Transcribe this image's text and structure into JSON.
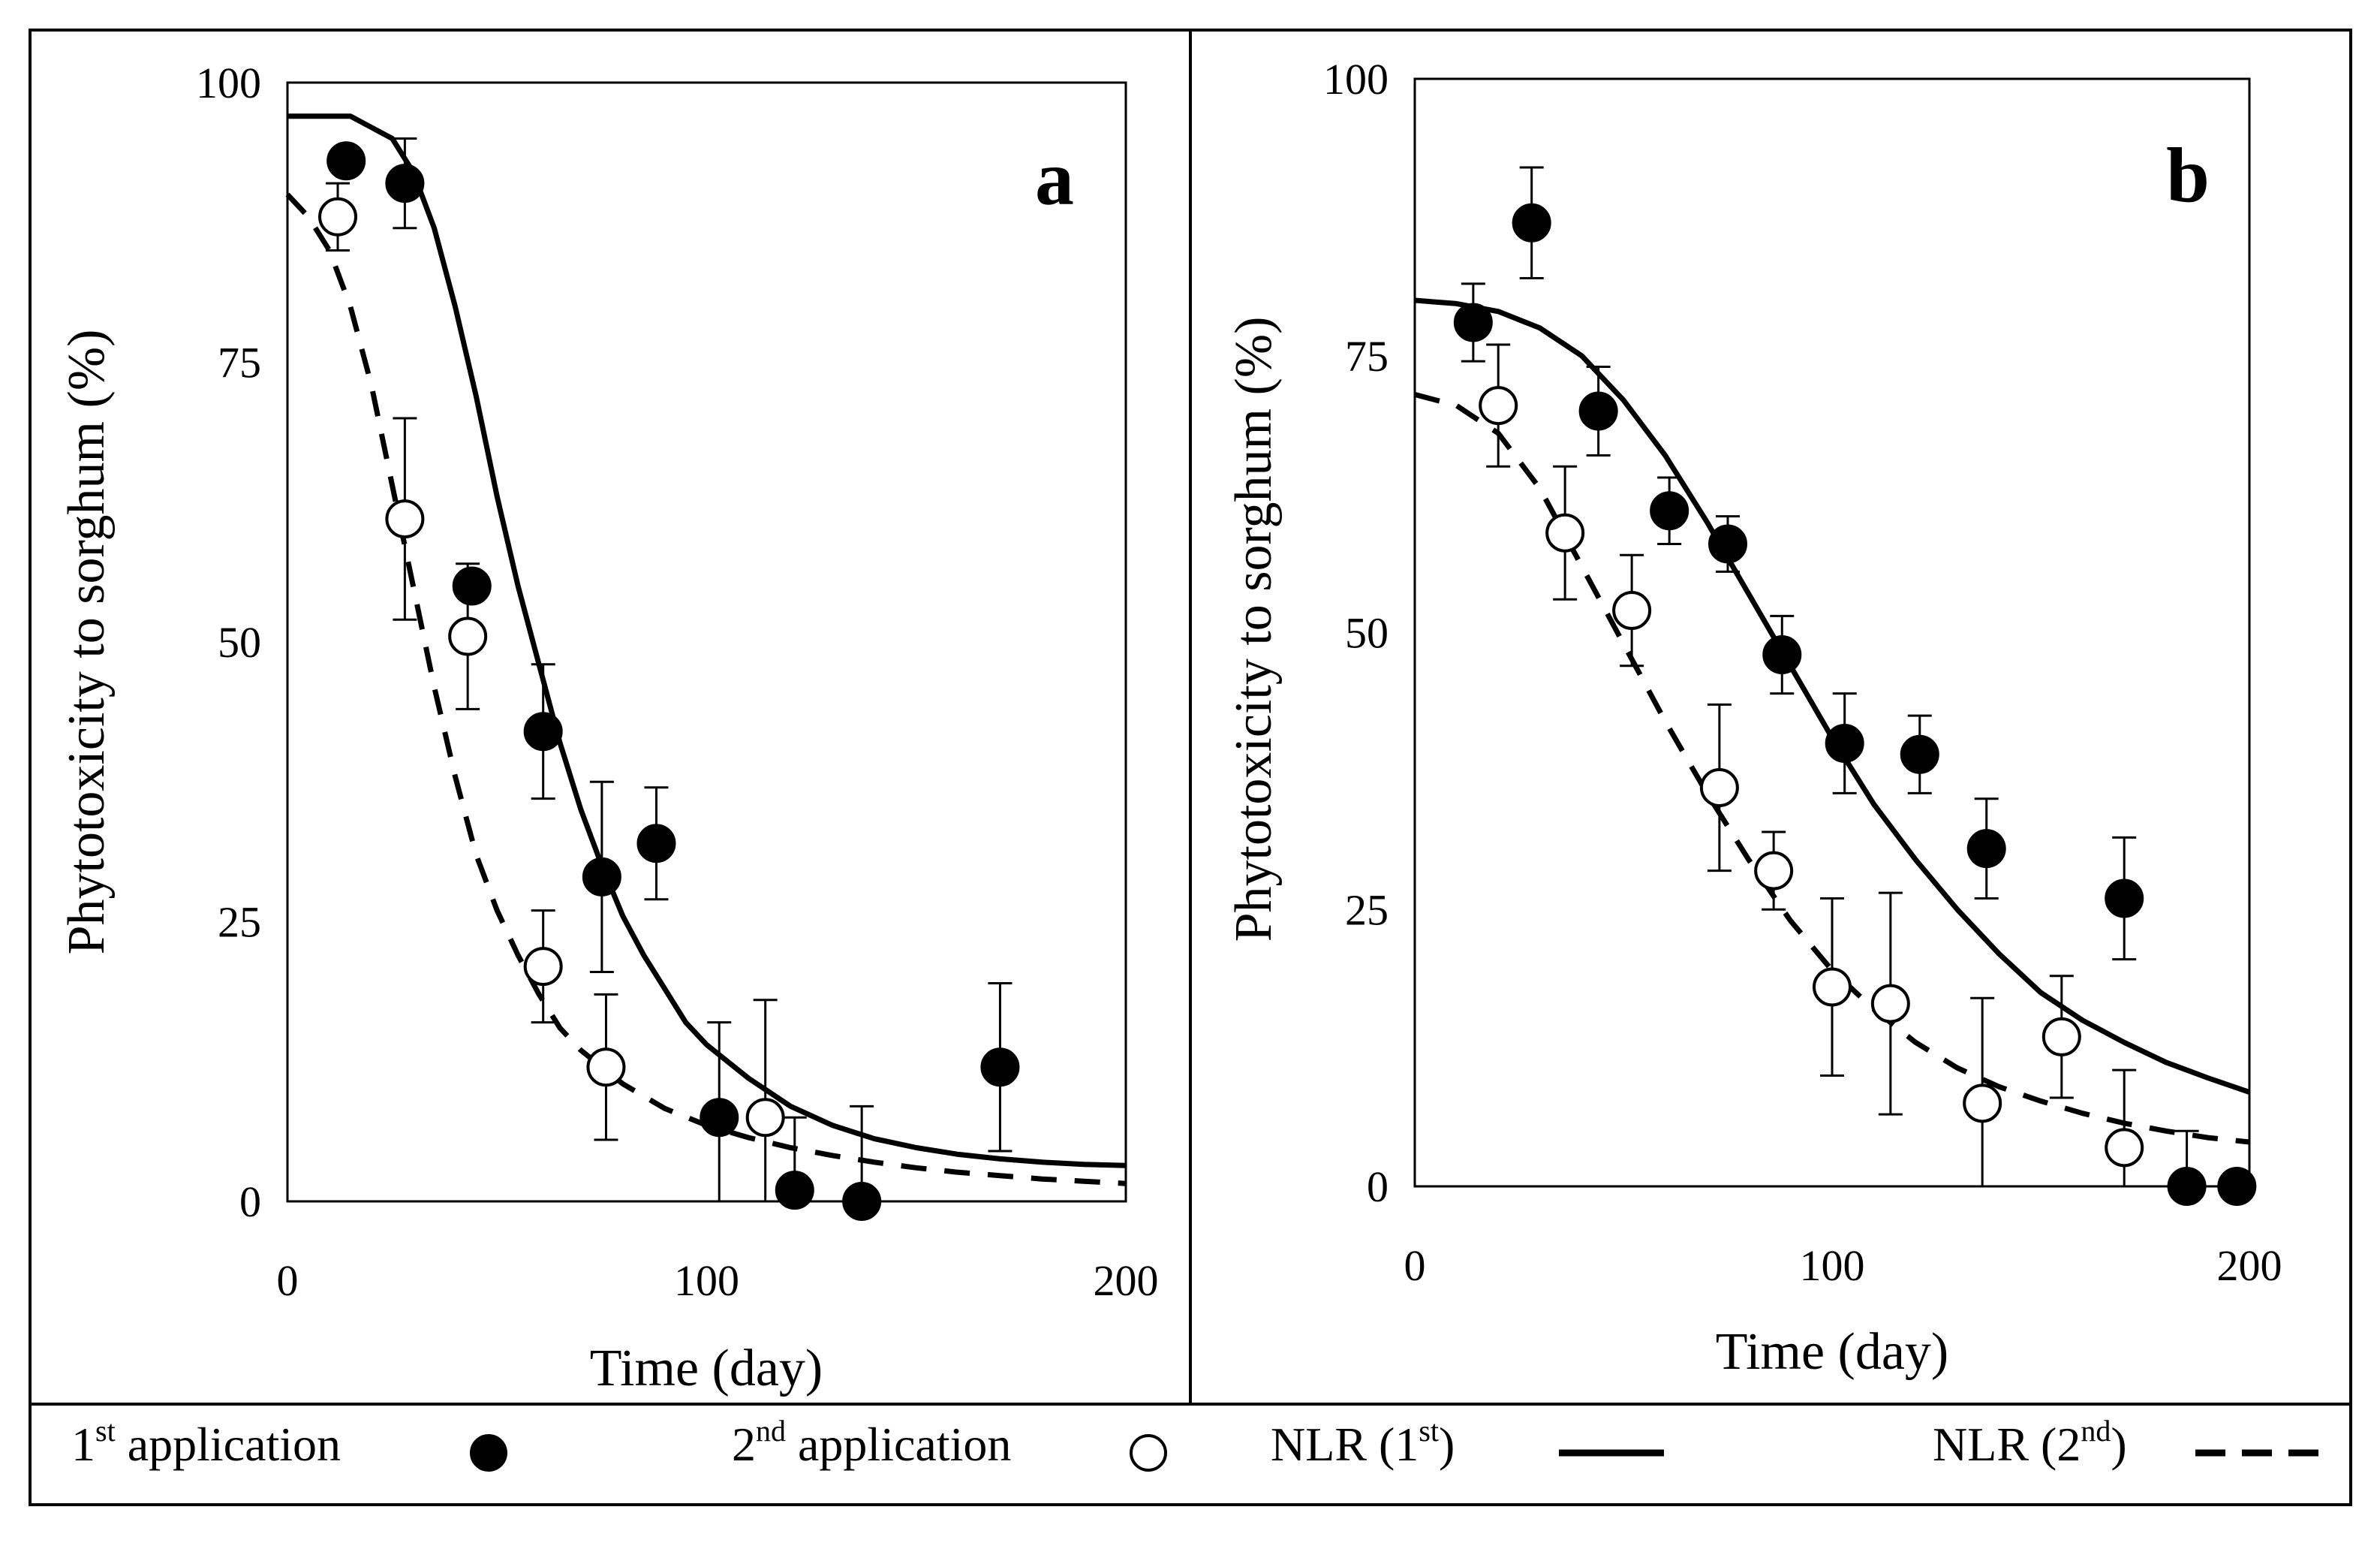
{
  "legend": {
    "first_application": {
      "base": "1",
      "sup": "st",
      "text": " application"
    },
    "second_application": {
      "base": "2",
      "sup": "nd",
      "text": " application"
    },
    "nlr_first": {
      "base": "NLR (1",
      "sup": "st",
      "text": ")"
    },
    "nlr_second": {
      "base": "NLR (2",
      "sup": "nd",
      "text": ")"
    }
  },
  "chart_data": [
    {
      "type": "scatter",
      "panel_label": "a",
      "xlabel": "Time (day)",
      "ylabel": "Phytotoxicity to sorghum (%)",
      "xlim": [
        0,
        200
      ],
      "ylim": [
        0,
        100
      ],
      "xticks": [
        "0",
        "100",
        "200"
      ],
      "yticks": [
        "0",
        "25",
        "50",
        "75",
        "100"
      ],
      "grid": false,
      "series": [
        {
          "key": "first",
          "marker": "filled-circle",
          "points": [
            {
              "x": 14,
              "y": 93,
              "err": 0
            },
            {
              "x": 28,
              "y": 91,
              "err": 4
            },
            {
              "x": 44,
              "y": 55,
              "err": 0
            },
            {
              "x": 61,
              "y": 42,
              "err": 6
            },
            {
              "x": 75,
              "y": 29,
              "err": 8.5
            },
            {
              "x": 88,
              "y": 32,
              "err": 5
            },
            {
              "x": 103,
              "y": 7.5,
              "err": 8.5
            },
            {
              "x": 121,
              "y": 1,
              "err": 6.5
            },
            {
              "x": 137,
              "y": 0,
              "err": 8.5
            },
            {
              "x": 170,
              "y": 12,
              "err": 7.5
            }
          ]
        },
        {
          "key": "second",
          "marker": "open-circle",
          "points": [
            {
              "x": 12,
              "y": 88,
              "err": 3
            },
            {
              "x": 28,
              "y": 61,
              "err": 9
            },
            {
              "x": 43,
              "y": 50.5,
              "err": 6.5
            },
            {
              "x": 61,
              "y": 21,
              "err": 5
            },
            {
              "x": 76,
              "y": 12,
              "err": 6.5
            },
            {
              "x": 114,
              "y": 7.5,
              "err": 10.5
            }
          ]
        }
      ],
      "fits": [
        {
          "key": "nlr_first",
          "style": "solid",
          "x": [
            0,
            5,
            10,
            15,
            20,
            25,
            30,
            35,
            40,
            45,
            50,
            55,
            60,
            65,
            70,
            75,
            80,
            85,
            90,
            95,
            100,
            110,
            120,
            130,
            140,
            150,
            160,
            170,
            180,
            190,
            200
          ],
          "y": [
            97,
            97,
            97,
            97,
            96,
            95,
            92,
            87,
            80,
            72,
            63,
            55,
            48,
            41,
            35,
            30,
            25.5,
            22,
            19,
            16,
            14,
            11,
            8.5,
            6.8,
            5.6,
            4.8,
            4.2,
            3.8,
            3.5,
            3.3,
            3.2
          ]
        },
        {
          "key": "nlr_second",
          "style": "dashed",
          "x": [
            0,
            5,
            10,
            15,
            20,
            25,
            30,
            35,
            40,
            45,
            50,
            55,
            60,
            65,
            70,
            75,
            80,
            90,
            100,
            110,
            120,
            130,
            140,
            150,
            160,
            170,
            180,
            190,
            200
          ],
          "y": [
            90,
            88,
            85,
            80,
            73,
            64,
            55,
            46,
            38,
            31,
            26,
            22,
            18.5,
            15.5,
            13.5,
            12,
            10.5,
            8.3,
            6.8,
            5.7,
            4.8,
            4.1,
            3.5,
            3.0,
            2.6,
            2.3,
            2.0,
            1.8,
            1.6
          ]
        }
      ]
    },
    {
      "type": "scatter",
      "panel_label": "b",
      "xlabel": "Time (day)",
      "ylabel": "Phytotoxicity to sorghum (%)",
      "xlim": [
        0,
        200
      ],
      "ylim": [
        0,
        100
      ],
      "xticks": [
        "0",
        "100",
        "200"
      ],
      "yticks": [
        "0",
        "25",
        "50",
        "75",
        "100"
      ],
      "grid": false,
      "series": [
        {
          "key": "first",
          "marker": "filled-circle",
          "points": [
            {
              "x": 14,
              "y": 78,
              "err": 3.5
            },
            {
              "x": 28,
              "y": 87,
              "err": 5
            },
            {
              "x": 44,
              "y": 70,
              "err": 4
            },
            {
              "x": 61,
              "y": 61,
              "err": 3
            },
            {
              "x": 75,
              "y": 58,
              "err": 2.5
            },
            {
              "x": 88,
              "y": 48,
              "err": 3.5
            },
            {
              "x": 103,
              "y": 40,
              "err": 4.5
            },
            {
              "x": 121,
              "y": 39,
              "err": 3.5
            },
            {
              "x": 137,
              "y": 30.5,
              "err": 4.5
            },
            {
              "x": 170,
              "y": 26,
              "err": 5.5
            },
            {
              "x": 185,
              "y": 0,
              "err": 5
            },
            {
              "x": 197,
              "y": 0,
              "err": 0
            }
          ]
        },
        {
          "key": "second",
          "marker": "open-circle",
          "points": [
            {
              "x": 20,
              "y": 70.5,
              "err": 5.5
            },
            {
              "x": 36,
              "y": 59,
              "err": 6
            },
            {
              "x": 52,
              "y": 52,
              "err": 5
            },
            {
              "x": 73,
              "y": 36,
              "err": 7.5
            },
            {
              "x": 86,
              "y": 28.5,
              "err": 3.5
            },
            {
              "x": 100,
              "y": 18,
              "err": 8
            },
            {
              "x": 114,
              "y": 16.5,
              "err": 10
            },
            {
              "x": 136,
              "y": 7.5,
              "err": 9.5
            },
            {
              "x": 155,
              "y": 13.5,
              "err": 5.5
            },
            {
              "x": 170,
              "y": 3.5,
              "err": 7
            }
          ]
        }
      ],
      "fits": [
        {
          "key": "nlr_first",
          "style": "solid",
          "x": [
            0,
            10,
            20,
            30,
            40,
            50,
            60,
            70,
            80,
            90,
            100,
            110,
            120,
            130,
            140,
            150,
            160,
            170,
            180,
            190,
            200
          ],
          "y": [
            80,
            79.7,
            79,
            77.5,
            75,
            71,
            66,
            60,
            53.5,
            47,
            40.5,
            34.5,
            29.5,
            25,
            21,
            17.5,
            15,
            13,
            11.2,
            9.8,
            8.5
          ]
        },
        {
          "key": "nlr_second",
          "style": "dashed",
          "x": [
            0,
            10,
            20,
            30,
            40,
            50,
            60,
            70,
            80,
            90,
            100,
            110,
            120,
            130,
            140,
            150,
            160,
            170,
            180,
            190,
            200
          ],
          "y": [
            71.5,
            70.5,
            68,
            63,
            56,
            49,
            42,
            35.5,
            29.5,
            24,
            19.5,
            16,
            13,
            10.7,
            9,
            7.7,
            6.6,
            5.7,
            5,
            4.4,
            4
          ]
        }
      ]
    }
  ]
}
